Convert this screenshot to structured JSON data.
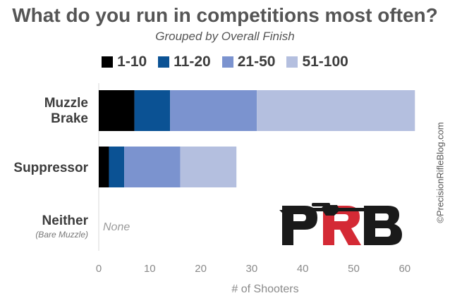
{
  "chart_data": {
    "type": "bar",
    "orientation": "horizontal",
    "stacked": true,
    "title": "What do you run in competitions most often?",
    "subtitle": "Grouped by Overall Finish",
    "xlabel": "# of Shooters",
    "xlim": [
      0,
      65
    ],
    "xticks": [
      0,
      10,
      20,
      30,
      40,
      50,
      60
    ],
    "grid": false,
    "legend_position": "top",
    "categories": [
      {
        "label": "Muzzle Brake",
        "sublabel": "",
        "note": ""
      },
      {
        "label": "Suppressor",
        "sublabel": "",
        "note": ""
      },
      {
        "label": "Neither",
        "sublabel": "(Bare Muzzle)",
        "note": "None"
      }
    ],
    "series": [
      {
        "name": "1-10",
        "color": "#000000",
        "values": [
          7,
          2,
          0
        ]
      },
      {
        "name": "11-20",
        "color": "#0b5294",
        "values": [
          7,
          3,
          0
        ]
      },
      {
        "name": "21-50",
        "color": "#7b93cf",
        "values": [
          17,
          11,
          0
        ]
      },
      {
        "name": "51-100",
        "color": "#b4bfdf",
        "values": [
          31,
          11,
          0
        ]
      }
    ]
  },
  "copyright": "©PrecisionRifleBlog.com",
  "logo": {
    "icon": "prb-logo-icon",
    "text": "PRB",
    "colors": [
      "#1a1a1a",
      "#d42a35"
    ]
  }
}
